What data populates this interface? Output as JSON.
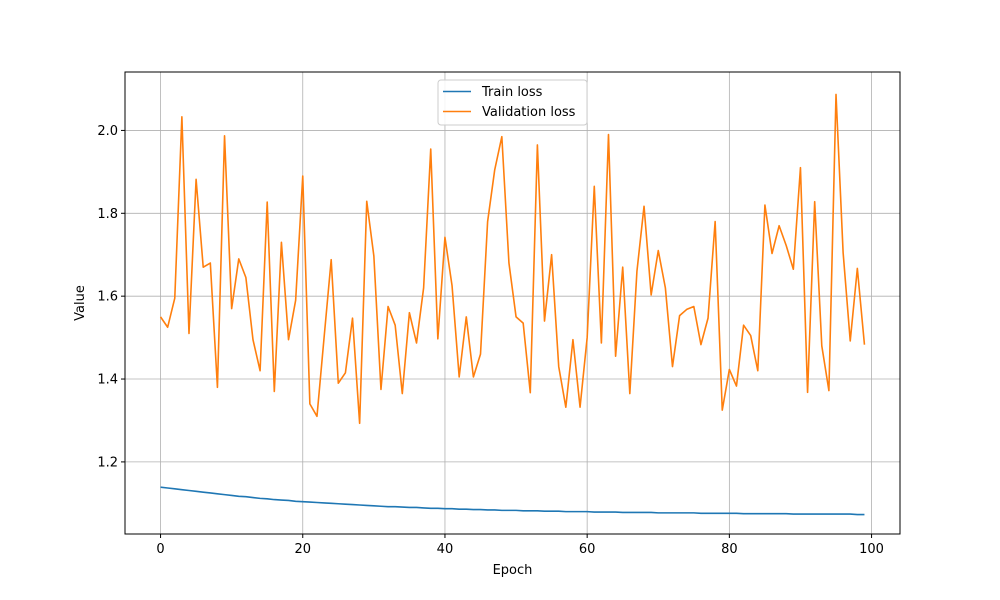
{
  "chart_data": {
    "type": "line",
    "xlabel": "Epoch",
    "ylabel": "Value",
    "xlim": [
      -5,
      104
    ],
    "ylim": [
      1.026,
      2.141
    ],
    "xticks": [
      0,
      20,
      40,
      60,
      80,
      100
    ],
    "yticks": [
      1.2,
      1.4,
      1.6,
      1.8,
      2.0
    ],
    "xtick_labels": [
      "0",
      "20",
      "40",
      "60",
      "80",
      "100"
    ],
    "ytick_labels": [
      "1.2",
      "1.4",
      "1.6",
      "1.8",
      "2.0"
    ],
    "grid": true,
    "legend_position": "top-center",
    "x": [
      0,
      1,
      2,
      3,
      4,
      5,
      6,
      7,
      8,
      9,
      10,
      11,
      12,
      13,
      14,
      15,
      16,
      17,
      18,
      19,
      20,
      21,
      22,
      23,
      24,
      25,
      26,
      27,
      28,
      29,
      30,
      31,
      32,
      33,
      34,
      35,
      36,
      37,
      38,
      39,
      40,
      41,
      42,
      43,
      44,
      45,
      46,
      47,
      48,
      49,
      50,
      51,
      52,
      53,
      54,
      55,
      56,
      57,
      58,
      59,
      60,
      61,
      62,
      63,
      64,
      65,
      66,
      67,
      68,
      69,
      70,
      71,
      72,
      73,
      74,
      75,
      76,
      77,
      78,
      79,
      80,
      81,
      82,
      83,
      84,
      85,
      86,
      87,
      88,
      89,
      90,
      91,
      92,
      93,
      94,
      95,
      96,
      97,
      98,
      99
    ],
    "series": [
      {
        "name": "Train loss",
        "color": "#1f77b4",
        "values": [
          1.139,
          1.137,
          1.135,
          1.133,
          1.131,
          1.129,
          1.127,
          1.125,
          1.123,
          1.121,
          1.119,
          1.117,
          1.116,
          1.114,
          1.112,
          1.111,
          1.109,
          1.108,
          1.107,
          1.105,
          1.104,
          1.103,
          1.102,
          1.101,
          1.1,
          1.099,
          1.098,
          1.097,
          1.096,
          1.095,
          1.094,
          1.093,
          1.092,
          1.092,
          1.091,
          1.09,
          1.09,
          1.089,
          1.088,
          1.088,
          1.087,
          1.087,
          1.086,
          1.086,
          1.085,
          1.085,
          1.084,
          1.084,
          1.083,
          1.083,
          1.083,
          1.082,
          1.082,
          1.082,
          1.081,
          1.081,
          1.081,
          1.08,
          1.08,
          1.08,
          1.08,
          1.079,
          1.079,
          1.079,
          1.079,
          1.078,
          1.078,
          1.078,
          1.078,
          1.078,
          1.077,
          1.077,
          1.077,
          1.077,
          1.077,
          1.077,
          1.076,
          1.076,
          1.076,
          1.076,
          1.076,
          1.076,
          1.075,
          1.075,
          1.075,
          1.075,
          1.075,
          1.075,
          1.075,
          1.074,
          1.074,
          1.074,
          1.074,
          1.074,
          1.074,
          1.074,
          1.074,
          1.074,
          1.073,
          1.073
        ]
      },
      {
        "name": "Validation loss",
        "color": "#ff7f0e",
        "values": [
          1.55,
          1.525,
          1.595,
          2.033,
          1.51,
          1.882,
          1.67,
          1.68,
          1.38,
          1.987,
          1.57,
          1.69,
          1.645,
          1.495,
          1.42,
          1.827,
          1.37,
          1.73,
          1.495,
          1.59,
          1.89,
          1.34,
          1.31,
          1.5,
          1.688,
          1.39,
          1.415,
          1.547,
          1.293,
          1.829,
          1.697,
          1.375,
          1.575,
          1.53,
          1.365,
          1.56,
          1.487,
          1.62,
          1.955,
          1.497,
          1.742,
          1.625,
          1.405,
          1.55,
          1.405,
          1.46,
          1.78,
          1.905,
          1.985,
          1.68,
          1.55,
          1.535,
          1.367,
          1.965,
          1.54,
          1.7,
          1.43,
          1.332,
          1.495,
          1.332,
          1.5,
          1.865,
          1.487,
          1.99,
          1.455,
          1.67,
          1.365,
          1.66,
          1.817,
          1.603,
          1.71,
          1.62,
          1.43,
          1.553,
          1.568,
          1.575,
          1.483,
          1.547,
          1.78,
          1.325,
          1.423,
          1.383,
          1.53,
          1.505,
          1.42,
          1.82,
          1.703,
          1.77,
          1.722,
          1.665,
          1.91,
          1.368,
          1.828,
          1.48,
          1.372,
          2.087,
          1.705,
          1.492,
          1.667,
          1.483
        ]
      }
    ]
  }
}
